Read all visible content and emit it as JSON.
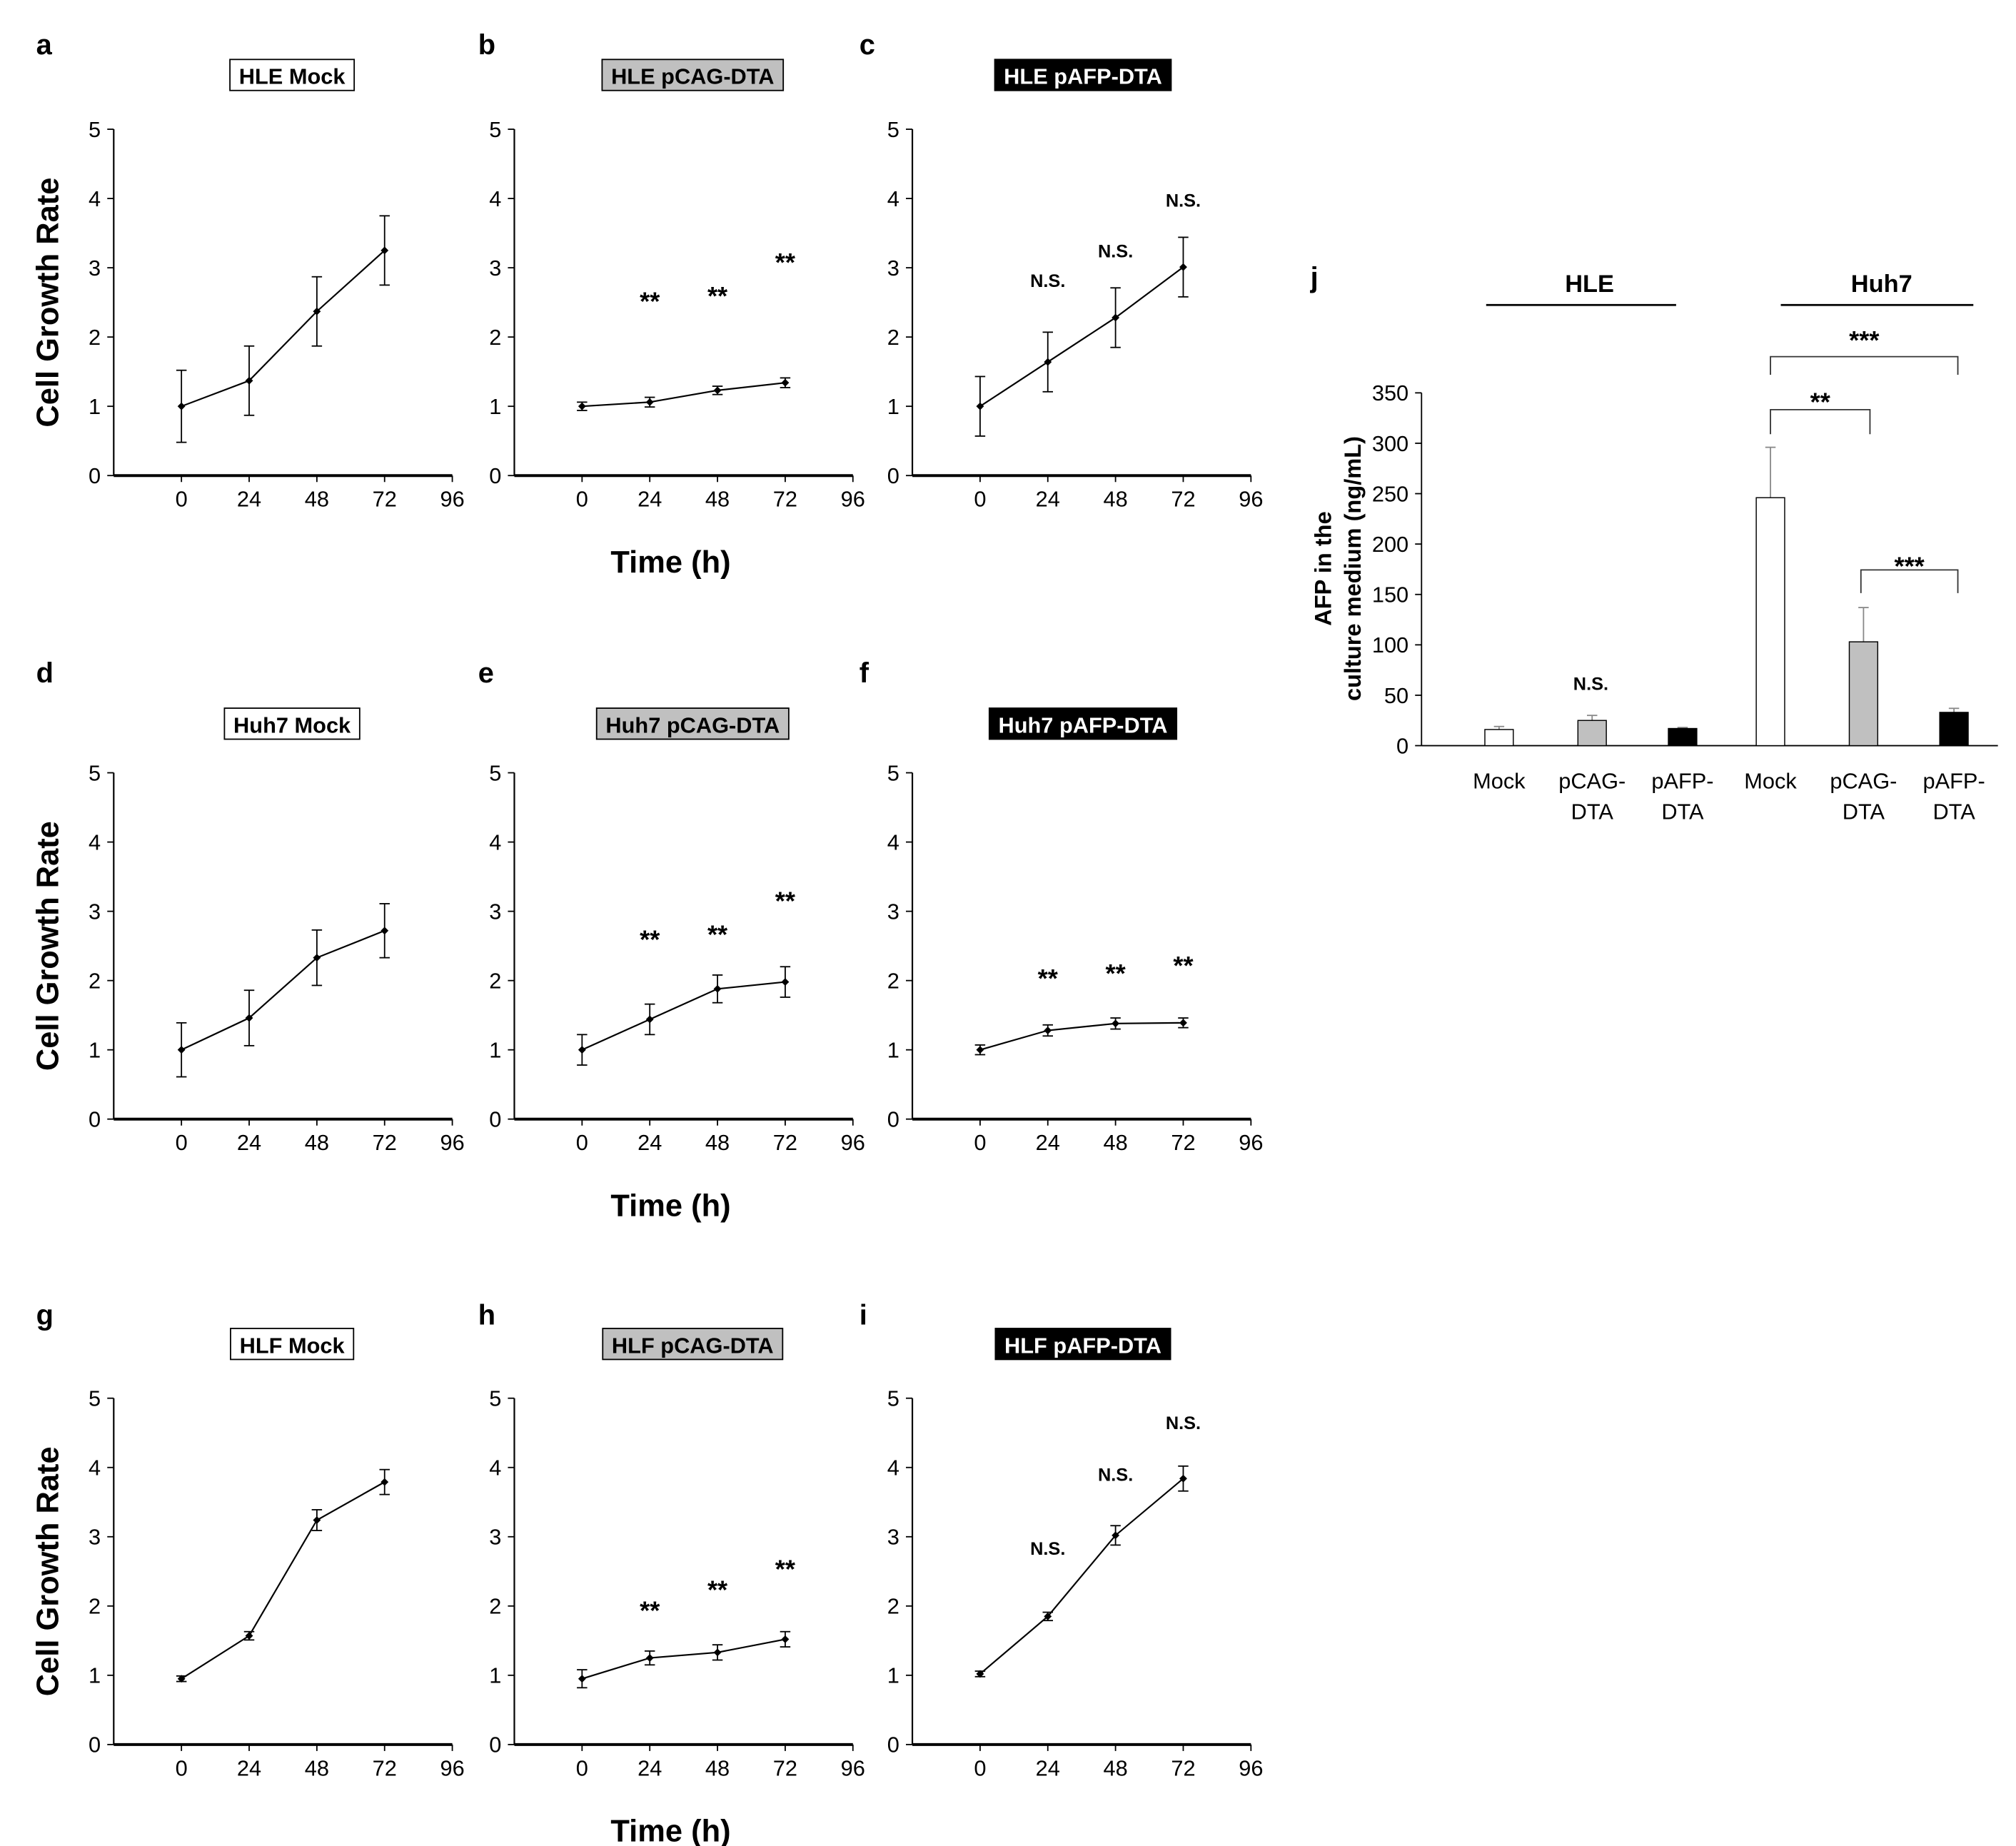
{
  "y_label": "Cell Growth Rate",
  "x_label": "Time (h)",
  "y_ticks": [
    "0",
    "1",
    "2",
    "3",
    "4",
    "5"
  ],
  "x_ticks": [
    "0",
    "24",
    "48",
    "72",
    "96"
  ],
  "colors": {
    "white": "#ffffff",
    "gray": "#c0c0c0",
    "black": "#000000"
  },
  "chart_data": [
    {
      "panel": "a",
      "type": "line",
      "title": "HLE  Mock",
      "title_style": "white",
      "x": [
        0,
        24,
        48,
        72
      ],
      "values": [
        1.0,
        1.37,
        2.37,
        3.25
      ],
      "errors": [
        0.52,
        0.5,
        0.5,
        0.5
      ],
      "sig": [
        null,
        null,
        null,
        null
      ],
      "ylim": [
        0,
        5
      ],
      "xlim": [
        -24,
        96
      ]
    },
    {
      "panel": "b",
      "type": "line",
      "title": "HLE pCAG-DTA",
      "title_style": "gray",
      "x": [
        0,
        24,
        48,
        72
      ],
      "values": [
        1.0,
        1.06,
        1.23,
        1.34
      ],
      "errors": [
        0.06,
        0.07,
        0.06,
        0.07
      ],
      "sig": [
        null,
        "**",
        "**",
        "**"
      ],
      "ylim": [
        0,
        5
      ],
      "xlim": [
        -24,
        96
      ]
    },
    {
      "panel": "c",
      "type": "line",
      "title": "HLE pAFP-DTA",
      "title_style": "black",
      "x": [
        0,
        24,
        48,
        72
      ],
      "values": [
        1.0,
        1.64,
        2.28,
        3.01
      ],
      "errors": [
        0.43,
        0.43,
        0.43,
        0.43
      ],
      "sig": [
        null,
        "N.S.",
        "N.S.",
        "N.S."
      ],
      "ylim": [
        0,
        5
      ],
      "xlim": [
        -24,
        96
      ]
    },
    {
      "panel": "d",
      "type": "line",
      "title": "Huh7  Mock",
      "title_style": "white",
      "x": [
        0,
        24,
        48,
        72
      ],
      "values": [
        1.0,
        1.46,
        2.33,
        2.72
      ],
      "errors": [
        0.39,
        0.4,
        0.4,
        0.39
      ],
      "sig": [
        null,
        null,
        null,
        null
      ],
      "ylim": [
        0,
        5
      ],
      "xlim": [
        -24,
        96
      ]
    },
    {
      "panel": "e",
      "type": "line",
      "title": "Huh7 pCAG-DTA",
      "title_style": "gray",
      "x": [
        0,
        24,
        48,
        72
      ],
      "values": [
        1.0,
        1.44,
        1.88,
        1.98
      ],
      "errors": [
        0.22,
        0.22,
        0.2,
        0.22
      ],
      "sig": [
        null,
        "**",
        "**",
        "**"
      ],
      "ylim": [
        0,
        5
      ],
      "xlim": [
        -24,
        96
      ]
    },
    {
      "panel": "f",
      "type": "line",
      "title": "Huh7 pAFP-DTA",
      "title_style": "black",
      "x": [
        0,
        24,
        48,
        72
      ],
      "values": [
        1.0,
        1.28,
        1.38,
        1.39
      ],
      "errors": [
        0.07,
        0.08,
        0.08,
        0.07
      ],
      "sig": [
        null,
        "**",
        "**",
        "**"
      ],
      "ylim": [
        0,
        5
      ],
      "xlim": [
        -24,
        96
      ]
    },
    {
      "panel": "g",
      "type": "line",
      "title": "HLF  Mock",
      "title_style": "white",
      "x": [
        0,
        24,
        48,
        72
      ],
      "values": [
        0.95,
        1.57,
        3.24,
        3.79
      ],
      "errors": [
        0.04,
        0.06,
        0.15,
        0.18
      ],
      "sig": [
        null,
        null,
        null,
        null
      ],
      "ylim": [
        0,
        5
      ],
      "xlim": [
        -24,
        96
      ]
    },
    {
      "panel": "h",
      "type": "line",
      "title": "HLF pCAG-DTA",
      "title_style": "gray",
      "x": [
        0,
        24,
        48,
        72
      ],
      "values": [
        0.95,
        1.25,
        1.33,
        1.52
      ],
      "errors": [
        0.13,
        0.1,
        0.11,
        0.11
      ],
      "sig": [
        null,
        "**",
        "**",
        "**"
      ],
      "ylim": [
        0,
        5
      ],
      "xlim": [
        -24,
        96
      ]
    },
    {
      "panel": "i",
      "type": "line",
      "title": "HLF pAFP-DTA",
      "title_style": "black",
      "x": [
        0,
        24,
        48,
        72
      ],
      "values": [
        1.02,
        1.85,
        3.02,
        3.84
      ],
      "errors": [
        0.04,
        0.06,
        0.14,
        0.18
      ],
      "sig": [
        null,
        "N.S.",
        "N.S.",
        "N.S."
      ],
      "ylim": [
        0,
        5
      ],
      "xlim": [
        -24,
        96
      ]
    },
    {
      "panel": "j",
      "type": "bar",
      "ylabel_line1": "AFP in the",
      "ylabel_line2": "culture medium (ng/mL)",
      "ylim": [
        0,
        350
      ],
      "y_ticks": [
        "0",
        "50",
        "100",
        "150",
        "200",
        "250",
        "300",
        "350"
      ],
      "groups": [
        "HLE",
        "Huh7"
      ],
      "categories": [
        [
          "Mock",
          ""
        ],
        [
          "pCAG-",
          "DTA"
        ],
        [
          "pAFP-",
          "DTA"
        ],
        [
          "Mock",
          ""
        ],
        [
          "pCAG-",
          "DTA"
        ],
        [
          "pAFP-",
          "DTA"
        ]
      ],
      "values": [
        16,
        25,
        17,
        246,
        103,
        33
      ],
      "errors": [
        3,
        5,
        1,
        50,
        34,
        4
      ],
      "fills": [
        "white",
        "gray",
        "black",
        "white",
        "gray",
        "black"
      ],
      "annotations": [
        {
          "text": "N.S.",
          "over": [
            1
          ]
        },
        {
          "text": "***",
          "bracket": [
            3,
            5
          ]
        },
        {
          "text": "**",
          "bracket": [
            3,
            4
          ]
        },
        {
          "text": "***",
          "bracket": [
            4,
            5
          ]
        }
      ]
    }
  ]
}
